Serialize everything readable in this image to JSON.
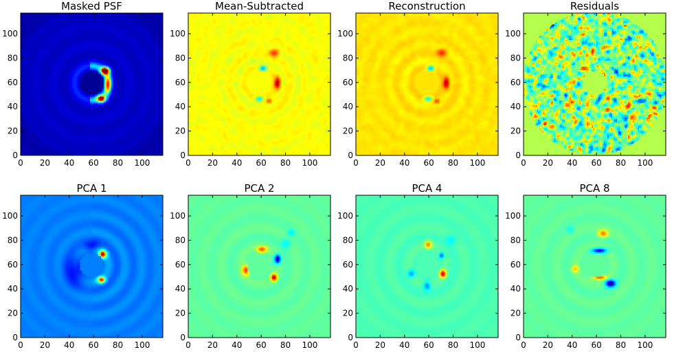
{
  "figure": {
    "panels": [
      {
        "title": "Masked PSF",
        "style": "psf"
      },
      {
        "title": "Mean-Subtracted",
        "style": "meansub"
      },
      {
        "title": "Reconstruction",
        "style": "recon"
      },
      {
        "title": "Residuals",
        "style": "resid"
      },
      {
        "title": "PCA 1",
        "style": "pca1"
      },
      {
        "title": "PCA 2",
        "style": "pca2"
      },
      {
        "title": "PCA 4",
        "style": "pca4"
      },
      {
        "title": "PCA 8",
        "style": "pca8"
      }
    ],
    "colormap": "jet"
  },
  "chart_data": {
    "type": "heatmap",
    "layout": "2 rows x 4 columns",
    "titles": [
      "Masked PSF",
      "Mean-Subtracted",
      "Reconstruction",
      "Residuals",
      "PCA 1",
      "PCA 2",
      "PCA 4",
      "PCA 8"
    ],
    "xlim": [
      0,
      117
    ],
    "ylim": [
      0,
      117
    ],
    "xticks": [
      0,
      20,
      40,
      60,
      80,
      100
    ],
    "yticks": [
      0,
      20,
      40,
      60,
      80,
      100
    ],
    "xtick_labels": [
      "0",
      "20",
      "40",
      "60",
      "80",
      "100"
    ],
    "ytick_labels": [
      "0",
      "20",
      "40",
      "60",
      "80",
      "100"
    ],
    "mask_center": [
      58,
      59
    ],
    "mask_radius": 10
  }
}
